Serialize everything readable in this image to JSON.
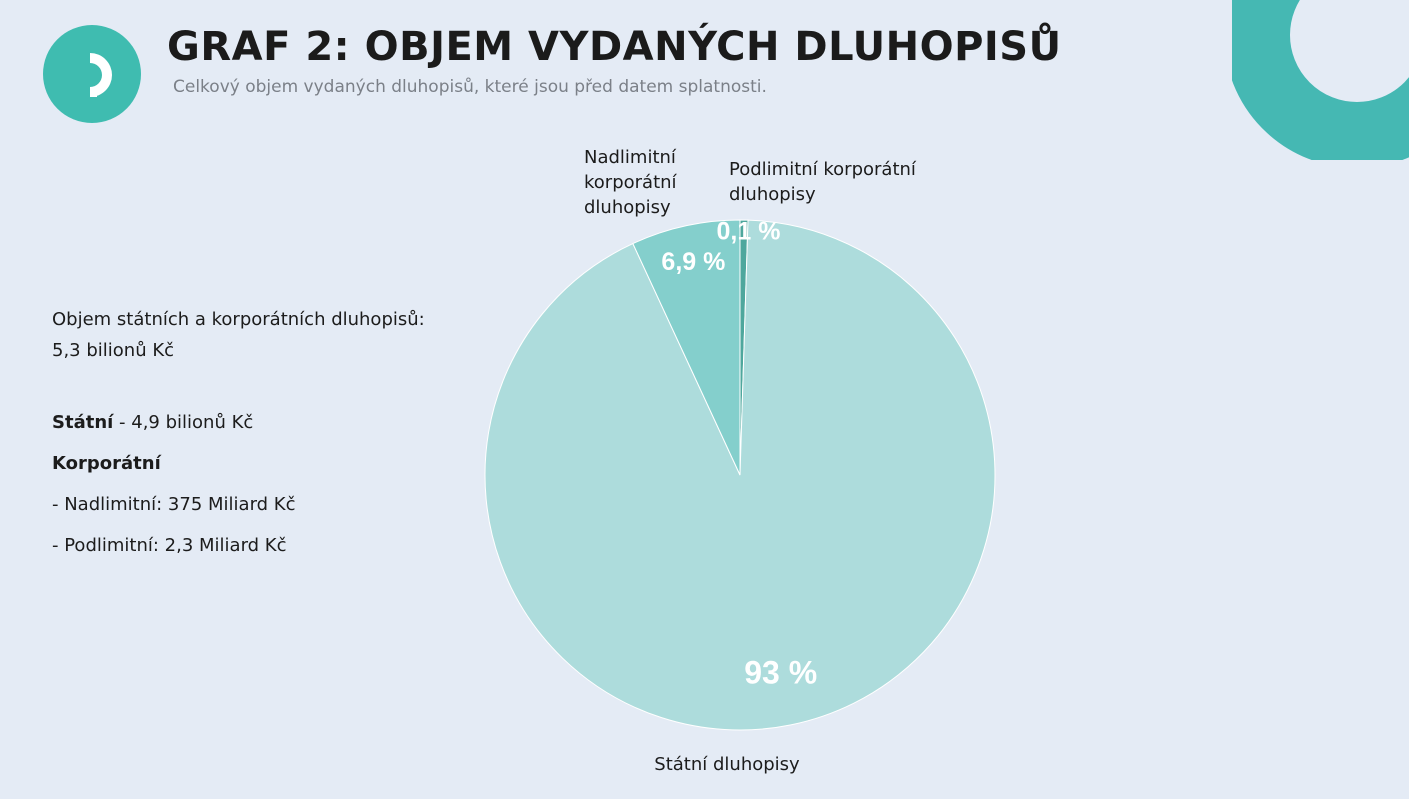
{
  "header": {
    "title": "GRAF 2: OBJEM VYDANÝCH DLUHOPISŮ",
    "subtitle": "Celkový objem vydaných dluhopisů, které jsou před datem splatnosti."
  },
  "info": {
    "total_label": "Objem státních a korporátních dluhopisů:",
    "total_value": "5,3 bilionů Kč",
    "state_label": "Státní",
    "state_value": " - 4,9 bilionů Kč",
    "corporate_label": "Korporátní",
    "above_limit": "- Nadlimitní: 375 Miliard Kč",
    "below_limit": "- Podlimitní:  2,3 Miliard Kč"
  },
  "colors": {
    "background": "#e4ebf5",
    "brand": "#3fbcb0",
    "slice_state": "#addcdc",
    "slice_above": "#84cfcc",
    "slice_below": "#4ea79d"
  },
  "chart_data": {
    "type": "pie",
    "title": "",
    "slices": [
      {
        "label": "Podlimitní korporátní dluhopisy",
        "value": 0.1,
        "value_label": "0,1 %",
        "color": "#4ea79d"
      },
      {
        "label": "Státní dluhopisy",
        "value": 93,
        "value_label": "93 %",
        "color": "#addcdc"
      },
      {
        "label": "Nadlimitní korporátní dluhopisy",
        "value": 6.9,
        "value_label": "6,9 %",
        "color": "#84cfcc"
      }
    ],
    "labels_display": {
      "above_limit_lines": [
        "Nadlimitní",
        "korporátní",
        "dluhopisy"
      ],
      "below_limit_lines": [
        "Podlimitní korporátní",
        "dluhopisy"
      ],
      "state_lines": [
        "Státní dluhopisy"
      ]
    }
  }
}
